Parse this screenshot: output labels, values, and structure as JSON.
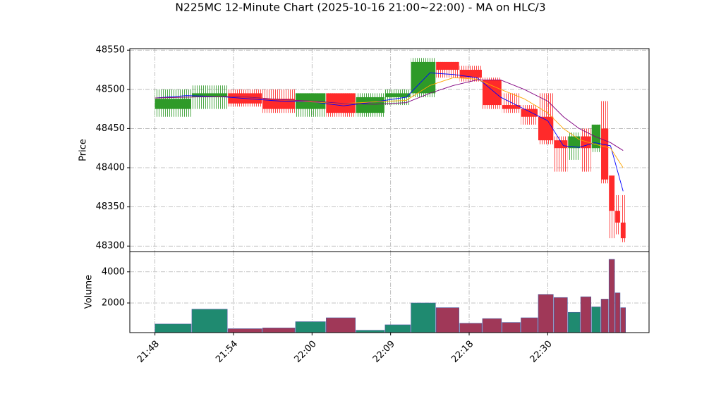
{
  "chart_data": {
    "type": "candlestick",
    "title": "N225MC 12-Minute Chart (2025-10-16 21:00~22:00) - MA on HLC/3",
    "ylabel": "Price",
    "xlim": [
      -3.2,
      62.9
    ],
    "xticks": [
      {
        "value": 0,
        "label": "21:48"
      },
      {
        "value": 10,
        "label": "21:54"
      },
      {
        "value": 20,
        "label": "22:00"
      },
      {
        "value": 30,
        "label": "22:09"
      },
      {
        "value": 40,
        "label": "22:18"
      },
      {
        "value": 50,
        "label": "22:30"
      }
    ],
    "ylim": [
      48293,
      48552
    ],
    "yticks": [
      48300,
      48350,
      48400,
      48450,
      48500,
      48550
    ],
    "grid": true,
    "up_color": "#2e9a28",
    "down_color": "#ff2a2a",
    "x": [
      0,
      4.7,
      9.3,
      13.7,
      17.9,
      21.8,
      25.6,
      29.3,
      32.6,
      35.8,
      38.8,
      41.7,
      44.2,
      46.6,
      48.8,
      50.8,
      52.6,
      54.2,
      55.6,
      56.8,
      57.8,
      58.6,
      59.3
    ],
    "open": [
      48475,
      48490,
      48495,
      48488,
      48475,
      48495,
      48470,
      48490,
      48495,
      48535,
      48525,
      48512,
      48480,
      48475,
      48465,
      48435,
      48425,
      48440,
      48425,
      48450,
      48390,
      48345,
      48330
    ],
    "high": [
      48500,
      48505,
      48500,
      48500,
      48495,
      48495,
      48495,
      48500,
      48540,
      48535,
      48530,
      48515,
      48495,
      48480,
      48495,
      48440,
      48445,
      48450,
      48455,
      48485,
      48390,
      48365,
      48365
    ],
    "low": [
      48465,
      48475,
      48478,
      48470,
      48465,
      48465,
      48465,
      48480,
      48490,
      48515,
      48510,
      48475,
      48470,
      48455,
      48430,
      48395,
      48410,
      48395,
      48420,
      48380,
      48310,
      48315,
      48305
    ],
    "close": [
      48488,
      48495,
      48482,
      48475,
      48495,
      48470,
      48490,
      48495,
      48535,
      48525,
      48515,
      48480,
      48475,
      48465,
      48435,
      48425,
      48440,
      48425,
      48455,
      48385,
      48345,
      48330,
      48310
    ],
    "ma_x": [
      0,
      4,
      8,
      12,
      16,
      20,
      24,
      28,
      32,
      35,
      38,
      41,
      44,
      47,
      50,
      52,
      54,
      56,
      58,
      59.6
    ],
    "ma_series": [
      {
        "color": "#0000ff",
        "values": [
          48489,
          48492,
          48491,
          48488,
          48485,
          48484,
          48479,
          48484,
          48490,
          48521,
          48519,
          48515,
          48490,
          48475,
          48460,
          48428,
          48426,
          48432,
          48428,
          48370
        ]
      },
      {
        "color": "#ffa500",
        "values": [
          48489,
          48490,
          48491,
          48490,
          48487,
          48484,
          48482,
          48484,
          48486,
          48505,
          48515,
          48513,
          48500,
          48488,
          48470,
          48450,
          48436,
          48430,
          48425,
          48400
        ]
      },
      {
        "color": "#800080",
        "values": [
          48489,
          48490,
          48491,
          48490,
          48487,
          48485,
          48482,
          48481,
          48483,
          48495,
          48505,
          48512,
          48512,
          48500,
          48485,
          48465,
          48450,
          48440,
          48432,
          48422
        ]
      }
    ],
    "volume": {
      "ylabel": "Volume",
      "ylim": [
        100,
        5300
      ],
      "yticks": [
        2000,
        4000
      ],
      "up_color": "#1f8a70",
      "down_color": "#a03858",
      "values": [
        650,
        1600,
        350,
        400,
        800,
        1050,
        250,
        600,
        2000,
        1700,
        700,
        1000,
        750,
        1050,
        2550,
        2350,
        1400,
        2400,
        1750,
        2250,
        4800,
        2650,
        1700
      ]
    }
  }
}
